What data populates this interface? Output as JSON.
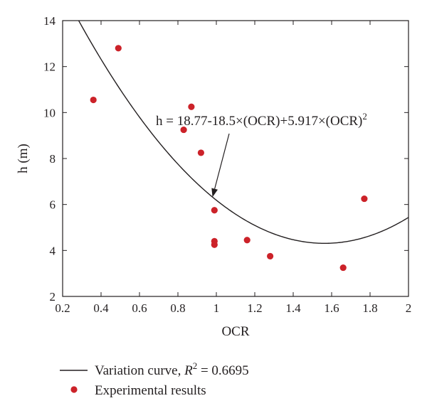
{
  "chart_data": {
    "type": "scatter",
    "xlabel": "OCR",
    "ylabel": "h (m)",
    "xlim": [
      0.2,
      2
    ],
    "ylim": [
      2,
      14
    ],
    "x_ticks": [
      "0.2",
      "0.4",
      "0.6",
      "0.8",
      "1",
      "1.2",
      "1.4",
      "1.6",
      "1.8",
      "2"
    ],
    "y_ticks": [
      "2",
      "4",
      "6",
      "8",
      "10",
      "12",
      "14"
    ],
    "grid": false,
    "legend_position": "bottom",
    "colors": {
      "points": "#cc2229",
      "curve": "#231f20",
      "axes": "#231f20"
    },
    "series": [
      {
        "name": "Experimental results",
        "kind": "scatter",
        "points": [
          {
            "x": 0.36,
            "y": 10.55
          },
          {
            "x": 0.49,
            "y": 12.8
          },
          {
            "x": 0.83,
            "y": 9.25
          },
          {
            "x": 0.87,
            "y": 10.25
          },
          {
            "x": 0.92,
            "y": 8.25
          },
          {
            "x": 0.99,
            "y": 5.75
          },
          {
            "x": 0.99,
            "y": 4.4
          },
          {
            "x": 0.99,
            "y": 4.25
          },
          {
            "x": 1.16,
            "y": 4.45
          },
          {
            "x": 1.28,
            "y": 3.75
          },
          {
            "x": 1.66,
            "y": 3.25
          },
          {
            "x": 1.77,
            "y": 6.25
          }
        ]
      },
      {
        "name": "Variation curve",
        "kind": "line",
        "equation": {
          "a": 18.77,
          "b": -18.5,
          "c": 5.917
        }
      }
    ],
    "annotation": {
      "prefix": "h = 18.77-18.5×(OCR)+5.917×(OCR)",
      "superscript": "2",
      "points_to_x": 0.98
    },
    "legend": {
      "curve_label_prefix": "Variation curve, ",
      "curve_label_symbol": "R",
      "curve_label_superscript": "2",
      "curve_label_suffix": " = 0.6695",
      "points_label": "Experimental results"
    }
  }
}
